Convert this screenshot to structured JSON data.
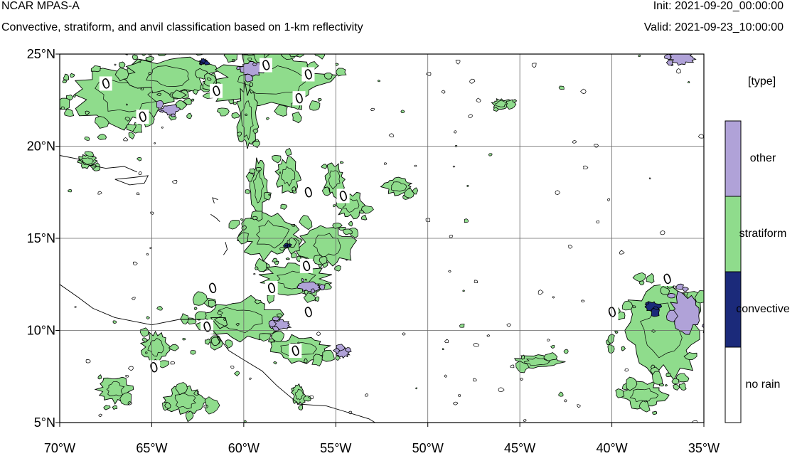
{
  "header": {
    "title": "NCAR MPAS-A",
    "subtitle": "Convective, stratiform, and anvil classification based on 1-km reflectivity",
    "init": "Init: 2021-09-20_00:00:00",
    "valid": "Valid: 2021-09-23_10:00:00"
  },
  "map": {
    "lon_range": [
      -70,
      -35
    ],
    "lat_range": [
      5,
      25
    ],
    "x_ticks": [
      {
        "lon": -70,
        "label": "70°W"
      },
      {
        "lon": -65,
        "label": "65°W"
      },
      {
        "lon": -60,
        "label": "60°W"
      },
      {
        "lon": -55,
        "label": "55°W"
      },
      {
        "lon": -50,
        "label": "50°W"
      },
      {
        "lon": -45,
        "label": "45°W"
      },
      {
        "lon": -40,
        "label": "40°W"
      },
      {
        "lon": -35,
        "label": "35°W"
      }
    ],
    "y_ticks": [
      {
        "lat": 25,
        "label": "25°N"
      },
      {
        "lat": 20,
        "label": "20°N"
      },
      {
        "lat": 15,
        "label": "15°N"
      },
      {
        "lat": 10,
        "label": "10°N"
      },
      {
        "lat": 5,
        "label": "5°N"
      }
    ],
    "gridlines": true,
    "contour_label": "0",
    "contour_label_points": [
      [
        -67.5,
        23.4
      ],
      [
        -65.5,
        21.6
      ],
      [
        -61.5,
        23.0
      ],
      [
        -57.0,
        22.6
      ],
      [
        -56.5,
        23.9
      ],
      [
        -58.8,
        24.4
      ],
      [
        -56.5,
        17.5
      ],
      [
        -54.6,
        17.3
      ],
      [
        -56.6,
        13.5
      ],
      [
        -58.5,
        12.3
      ],
      [
        -56.5,
        11.0
      ],
      [
        -61.7,
        12.3
      ],
      [
        -62.0,
        10.2
      ],
      [
        -57.2,
        8.9
      ],
      [
        -64.9,
        8.0
      ],
      [
        -40.0,
        11.0
      ],
      [
        -37.0,
        12.8
      ]
    ],
    "colors": {
      "stratiform": "#8fdc8c",
      "convective": "#1b2a7a",
      "other": "#b0a2d8",
      "norain": "#ffffff",
      "contour": "#000000"
    },
    "regions": [
      {
        "type": "stratiform",
        "lon": -66.5,
        "lat": 22.8,
        "rx": 3.2,
        "ry": 1.9
      },
      {
        "type": "stratiform",
        "lon": -64.0,
        "lat": 23.8,
        "rx": 2.6,
        "ry": 1.2
      },
      {
        "type": "stratiform",
        "lon": -58.5,
        "lat": 23.5,
        "rx": 3.6,
        "ry": 1.6
      },
      {
        "type": "stratiform",
        "lon": -59.8,
        "lat": 21.5,
        "rx": 0.6,
        "ry": 2.0
      },
      {
        "type": "stratiform",
        "lon": -68.5,
        "lat": 19.2,
        "rx": 0.6,
        "ry": 0.4
      },
      {
        "type": "stratiform",
        "lon": -59.2,
        "lat": 17.8,
        "rx": 0.5,
        "ry": 1.6
      },
      {
        "type": "stratiform",
        "lon": -57.6,
        "lat": 18.4,
        "rx": 0.7,
        "ry": 1.0
      },
      {
        "type": "stratiform",
        "lon": -55.1,
        "lat": 18.2,
        "rx": 0.6,
        "ry": 1.0
      },
      {
        "type": "stratiform",
        "lon": -54.2,
        "lat": 16.8,
        "rx": 0.8,
        "ry": 0.8
      },
      {
        "type": "stratiform",
        "lon": -51.6,
        "lat": 17.8,
        "rx": 0.9,
        "ry": 0.5
      },
      {
        "type": "stratiform",
        "lon": -58.5,
        "lat": 15.2,
        "rx": 1.8,
        "ry": 1.4
      },
      {
        "type": "stratiform",
        "lon": -55.5,
        "lat": 14.6,
        "rx": 1.6,
        "ry": 1.2
      },
      {
        "type": "stratiform",
        "lon": -57.2,
        "lat": 12.8,
        "rx": 2.0,
        "ry": 1.0
      },
      {
        "type": "stratiform",
        "lon": -60.2,
        "lat": 10.6,
        "rx": 2.6,
        "ry": 1.3
      },
      {
        "type": "stratiform",
        "lon": -57.0,
        "lat": 9.0,
        "rx": 1.8,
        "ry": 0.8
      },
      {
        "type": "stratiform",
        "lon": -64.8,
        "lat": 9.1,
        "rx": 0.8,
        "ry": 0.9
      },
      {
        "type": "stratiform",
        "lon": -67.0,
        "lat": 6.8,
        "rx": 1.0,
        "ry": 0.8
      },
      {
        "type": "stratiform",
        "lon": -63.2,
        "lat": 6.2,
        "rx": 1.2,
        "ry": 0.8
      },
      {
        "type": "stratiform",
        "lon": -57.0,
        "lat": 6.5,
        "rx": 0.4,
        "ry": 0.6
      },
      {
        "type": "stratiform",
        "lon": -46.0,
        "lat": 22.3,
        "rx": 0.6,
        "ry": 0.3
      },
      {
        "type": "stratiform",
        "lon": -44.0,
        "lat": 8.3,
        "rx": 1.4,
        "ry": 0.4
      },
      {
        "type": "stratiform",
        "lon": -37.2,
        "lat": 10.0,
        "rx": 2.4,
        "ry": 2.6
      },
      {
        "type": "stratiform",
        "lon": -38.3,
        "lat": 6.5,
        "rx": 1.4,
        "ry": 0.8
      },
      {
        "type": "other",
        "lon": -36.2,
        "lat": 24.8,
        "rx": 0.8,
        "ry": 0.4
      },
      {
        "type": "other",
        "lon": -36.0,
        "lat": 11.0,
        "rx": 0.9,
        "ry": 1.2
      },
      {
        "type": "other",
        "lon": -59.5,
        "lat": 24.2,
        "rx": 0.8,
        "ry": 0.4
      },
      {
        "type": "other",
        "lon": -64.0,
        "lat": 22.0,
        "rx": 0.6,
        "ry": 0.3
      },
      {
        "type": "other",
        "lon": -56.5,
        "lat": 12.4,
        "rx": 0.7,
        "ry": 0.3
      },
      {
        "type": "other",
        "lon": -58.0,
        "lat": 10.3,
        "rx": 0.6,
        "ry": 0.3
      },
      {
        "type": "other",
        "lon": -54.6,
        "lat": 8.8,
        "rx": 0.4,
        "ry": 0.3
      },
      {
        "type": "convective",
        "lon": -37.8,
        "lat": 11.3,
        "rx": 0.5,
        "ry": 0.3
      },
      {
        "type": "convective",
        "lon": -62.2,
        "lat": 24.6,
        "rx": 0.2,
        "ry": 0.15
      },
      {
        "type": "convective",
        "lon": -57.6,
        "lat": 14.6,
        "rx": 0.15,
        "ry": 0.12
      }
    ],
    "coastlines": [
      [
        [
          -70,
          19.5
        ],
        [
          -69,
          19.3
        ],
        [
          -68.5,
          19.0
        ],
        [
          -67.5,
          18.8
        ],
        [
          -66.5,
          18.9
        ],
        [
          -65.8,
          18.6
        ]
      ],
      [
        [
          -67.0,
          18.2
        ],
        [
          -66.0,
          18.3
        ],
        [
          -65.2,
          18.4
        ],
        [
          -65.4,
          18.0
        ],
        [
          -66.2,
          17.9
        ],
        [
          -67.0,
          18.2
        ]
      ],
      [
        [
          -70,
          12.5
        ],
        [
          -69.0,
          11.8
        ],
        [
          -68.2,
          11.2
        ],
        [
          -67.0,
          10.7
        ],
        [
          -65.0,
          10.3
        ],
        [
          -63.5,
          10.6
        ],
        [
          -62.2,
          10.6
        ],
        [
          -61.5,
          9.8
        ],
        [
          -60.8,
          8.9
        ],
        [
          -60.0,
          8.4
        ],
        [
          -59.0,
          7.8
        ],
        [
          -58.2,
          7.0
        ],
        [
          -57.0,
          6.0
        ],
        [
          -55.5,
          5.9
        ],
        [
          -54.5,
          5.6
        ],
        [
          -53.2,
          5.2
        ],
        [
          -52.2,
          4.6
        ]
      ],
      [
        [
          -61.8,
          10.7
        ],
        [
          -61.0,
          10.7
        ],
        [
          -60.9,
          10.3
        ],
        [
          -61.3,
          10.1
        ],
        [
          -61.8,
          10.7
        ]
      ],
      [
        [
          -61.0,
          14.8
        ],
        [
          -60.9,
          14.4
        ],
        [
          -61.1,
          14.1
        ]
      ],
      [
        [
          -61.8,
          16.3
        ],
        [
          -61.5,
          16.1
        ],
        [
          -61.3,
          15.9
        ]
      ],
      [
        [
          -61.4,
          17.1
        ],
        [
          -61.7,
          17.2
        ],
        [
          -61.6,
          16.9
        ]
      ]
    ]
  },
  "legend": {
    "title": "[type]",
    "items": [
      {
        "label": "other",
        "color": "#b0a2d8"
      },
      {
        "label": "stratiform",
        "color": "#8fdc8c"
      },
      {
        "label": "convective",
        "color": "#1b2a7a"
      },
      {
        "label": "no rain",
        "color": "#ffffff"
      }
    ]
  }
}
